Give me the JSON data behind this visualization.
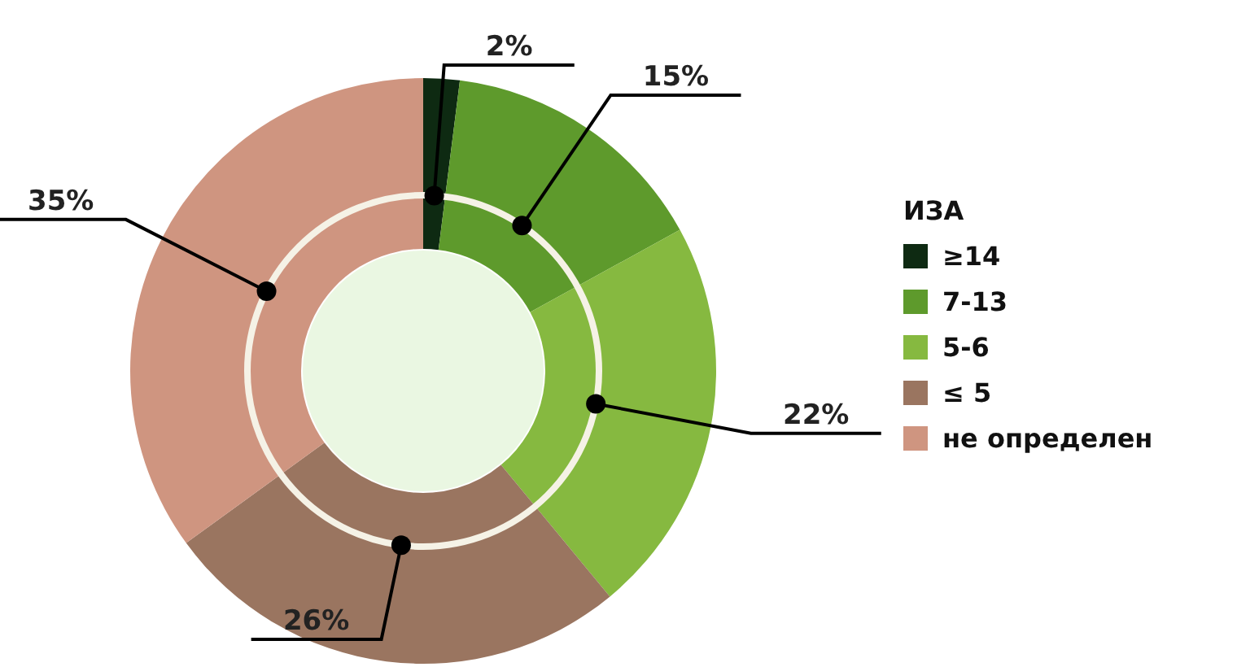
{
  "chart_data": {
    "type": "donut",
    "legend_title": "ИЗА",
    "legend": "right",
    "categories": [
      "≥14",
      "7-13",
      "5-6",
      "≤ 5",
      "не определен"
    ],
    "values": [
      2,
      15,
      22,
      26,
      35
    ],
    "value_labels": [
      "2%",
      "15%",
      "22%",
      "26%",
      "35%"
    ],
    "colors": [
      "#0e2a12",
      "#5e9a2c",
      "#86b940",
      "#9a7560",
      "#cf9580"
    ]
  }
}
